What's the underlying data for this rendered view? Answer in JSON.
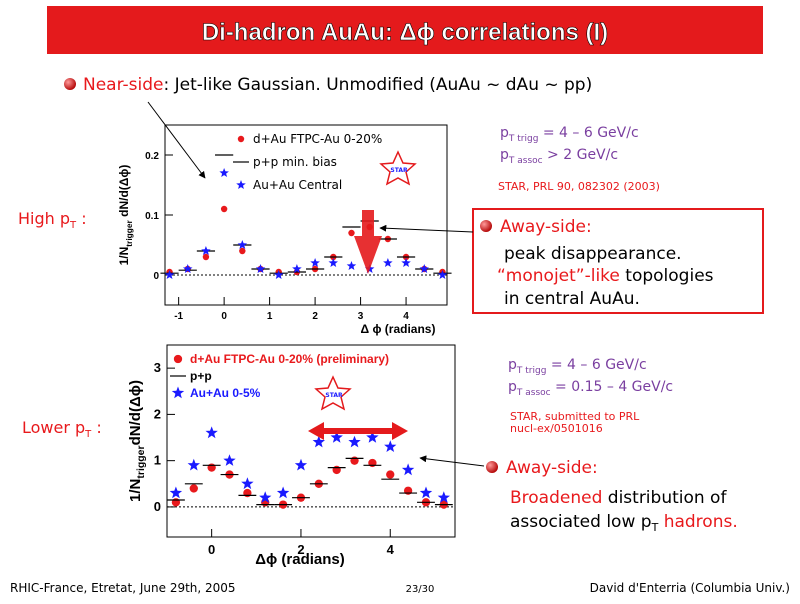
{
  "title": "Di-hadron AuAu: Δϕ correlations (I)",
  "near_side": {
    "label": "Near-side",
    "text": ":  Jet-like Gaussian. Unmodified (AuAu ~ dAu ~ pp)"
  },
  "high_pt": [
    "High p",
    "T",
    " :"
  ],
  "lower_pt": [
    "Lower p",
    "T",
    " :"
  ],
  "cuts_1": [
    [
      "p",
      "T trigg",
      " = 4 – 6 GeV/c"
    ],
    [
      "p",
      "T assoc",
      " > 2 GeV/c"
    ]
  ],
  "ref_1": [
    "STAR, PRL 90, 082302 (2003)"
  ],
  "cuts_2": [
    [
      "p",
      "T trigg",
      " = 4 – 6 GeV/c"
    ],
    [
      "p",
      "T assoc",
      " = 0.15 – 4 GeV/c"
    ]
  ],
  "ref_2": [
    "STAR, submitted to PRL",
    "nucl-ex/0501016"
  ],
  "away_1": {
    "head": "Away-side:",
    "line1": "peak disappearance.",
    "line2_red": "“monojet”-like",
    "line2": " topologies",
    "line3": "in central AuAu."
  },
  "away_2": {
    "head": "Away-side:",
    "line1_red": "Broadened",
    "line1": " distribution of",
    "line2": "associated low p",
    "line2_sub": "T",
    "line2_red": " hadrons."
  },
  "footer": {
    "left": "RHIC-France, Etretat, June 29th, 2005",
    "center": "23/30",
    "right": "David d'Enterria (Columbia Univ.)"
  },
  "chart_data": [
    {
      "type": "scatter",
      "xlabel": "Δ ϕ (radians)",
      "ylabel": [
        "1/N",
        "trigger",
        " dN/d(Δϕ)"
      ],
      "xlim": [
        -1.3,
        4.9
      ],
      "ylim": [
        -0.05,
        0.25
      ],
      "xticks": [
        -1,
        0,
        1,
        2,
        3,
        4
      ],
      "yticks": [
        0,
        0.1,
        0.2
      ],
      "x": [
        -1.2,
        -0.8,
        -0.4,
        0,
        0.4,
        0.8,
        1.2,
        1.6,
        2.0,
        2.4,
        2.8,
        3.2,
        3.6,
        4.0,
        4.4,
        4.8
      ],
      "series": [
        {
          "name": "d+Au FTPC-Au 0-20%",
          "color": "#e8191c",
          "marker": "circle",
          "values": [
            0.005,
            0.01,
            0.03,
            0.11,
            0.04,
            0.01,
            0.005,
            0.005,
            0.01,
            0.03,
            0.07,
            0.08,
            0.06,
            0.03,
            0.01,
            0.005
          ]
        },
        {
          "name": "p+p min. bias",
          "color": "#000000",
          "marker": "histogram",
          "values": [
            0.003,
            0.008,
            0.04,
            0.2,
            0.05,
            0.01,
            0.003,
            0.005,
            0.01,
            0.03,
            0.08,
            0.09,
            0.06,
            0.03,
            0.01,
            0.003
          ]
        },
        {
          "name": "Au+Au Central",
          "color": "#1a1aff",
          "marker": "star",
          "values": [
            0.0,
            0.01,
            0.04,
            0.17,
            0.05,
            0.01,
            0.0,
            0.01,
            0.02,
            0.02,
            0.015,
            0.01,
            0.02,
            0.02,
            0.01,
            0.0
          ]
        }
      ]
    },
    {
      "type": "scatter",
      "xlabel": "Δϕ (radians)",
      "ylabel": [
        "1/N",
        "trigger",
        "dN/d(Δϕ)"
      ],
      "xlim": [
        -1.0,
        5.45
      ],
      "ylim": [
        -0.65,
        3.5
      ],
      "xticks": [
        0,
        2,
        4
      ],
      "yticks": [
        0,
        1,
        2,
        3
      ],
      "x": [
        -0.8,
        -0.4,
        0,
        0.4,
        0.8,
        1.2,
        1.6,
        2.0,
        2.4,
        2.8,
        3.2,
        3.6,
        4.0,
        4.4,
        4.8,
        5.2
      ],
      "series": [
        {
          "name": "d+Au FTPC-Au 0-20% (preliminary)",
          "color": "#e8191c",
          "marker": "circle",
          "values": [
            0.1,
            0.4,
            0.85,
            0.7,
            0.3,
            0.1,
            0.05,
            0.2,
            0.5,
            0.8,
            1.0,
            0.95,
            0.7,
            0.35,
            0.1,
            0.05
          ]
        },
        {
          "name": "p+p",
          "color": "#000000",
          "marker": "histogram",
          "values": [
            0.15,
            0.5,
            0.9,
            0.7,
            0.25,
            0.05,
            0.05,
            0.2,
            0.5,
            0.85,
            1.05,
            0.9,
            0.6,
            0.3,
            0.1,
            0.05
          ]
        },
        {
          "name": "Au+Au 0-5%",
          "color": "#1a1aff",
          "marker": "star",
          "values": [
            0.3,
            0.9,
            1.6,
            1.0,
            0.5,
            0.2,
            0.3,
            0.9,
            1.4,
            1.5,
            1.4,
            1.5,
            1.3,
            0.8,
            0.3,
            0.2
          ]
        }
      ]
    }
  ]
}
